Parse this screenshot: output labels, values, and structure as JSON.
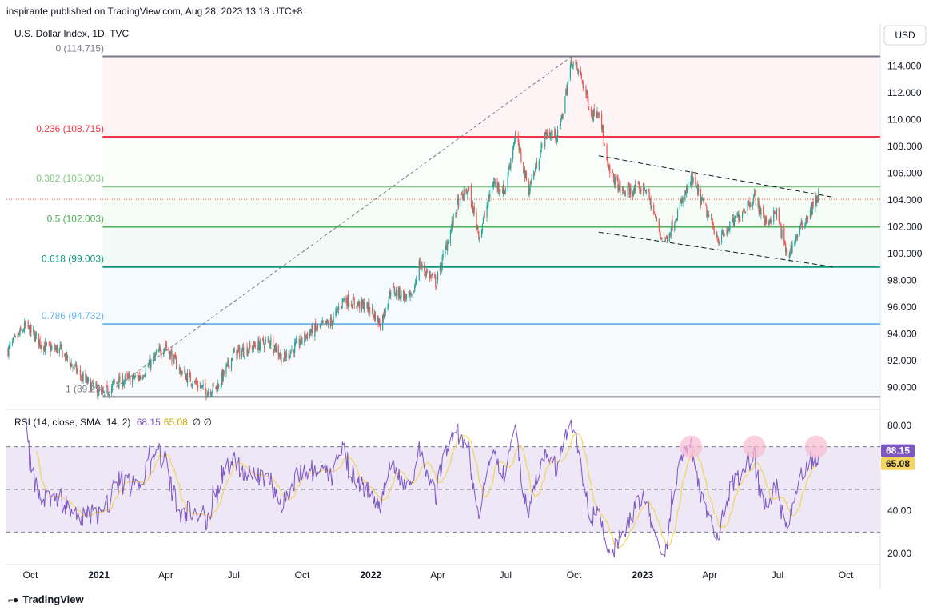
{
  "header": {
    "published": "inspirante published on TradingView.com, Aug 28, 2023 13:18 UTC+8"
  },
  "brand": {
    "name": "TradingView",
    "logo_icon": "tradingview-logo-icon"
  },
  "colors": {
    "up": "#26a69a",
    "down": "#ef5350",
    "rsi_line": "#7e57c2",
    "rsi_ma": "#f4d35e",
    "fib_0": "#787b86",
    "fib_0236": "#f23645",
    "fib_0382": "#81c784",
    "fib_05": "#4caf50",
    "fib_0618": "#089981",
    "fib_0786": "#64b5f6",
    "fib_1": "#787b86",
    "rsi_band": "#ede7f6",
    "highlight": "#f8bbd0"
  },
  "chart_data": [
    {
      "type": "candlestick",
      "title": "U.S. Dollar Index, 1D, TVC",
      "currency_button": "USD",
      "x_tick_labels": [
        "Oct",
        "2021",
        "Apr",
        "Jul",
        "Oct",
        "2022",
        "Apr",
        "Jul",
        "Oct",
        "2023",
        "Apr",
        "Jul",
        "Oct"
      ],
      "y_ticks": [
        90,
        92,
        94,
        96,
        98,
        100,
        102,
        104,
        106,
        108,
        110,
        112,
        114
      ],
      "ylim": [
        88.5,
        115.5
      ],
      "fib_levels": [
        {
          "ratio": "0",
          "price": 114.715,
          "label": "0 (114.715)",
          "color": "#787b86"
        },
        {
          "ratio": "0.236",
          "price": 108.715,
          "label": "0.236 (108.715)",
          "color": "#f23645"
        },
        {
          "ratio": "0.382",
          "price": 105.003,
          "label": "0.382 (105.003)",
          "color": "#81c784"
        },
        {
          "ratio": "0.5",
          "price": 102.003,
          "label": "0.5 (102.003)",
          "color": "#4caf50"
        },
        {
          "ratio": "0.618",
          "price": 99.003,
          "label": "0.618 (99.003)",
          "color": "#089981"
        },
        {
          "ratio": "0.786",
          "price": 94.732,
          "label": "0.786 (94.732)",
          "color": "#64b5f6"
        },
        {
          "ratio": "1",
          "price": 89.29,
          "label": "1 (89.29)",
          "color": "#787b86"
        }
      ],
      "last_price": 104.05,
      "trend_line": {
        "from": [
          "2021-01-06",
          89.29
        ],
        "to": [
          "2022-09-28",
          114.715
        ]
      },
      "channel_upper": {
        "from": [
          "2022-11-03",
          107.3
        ],
        "to": [
          "2023-09-15",
          104.2
        ]
      },
      "channel_lower": {
        "from": [
          "2022-11-03",
          101.6
        ],
        "to": [
          "2023-09-15",
          99.0
        ]
      },
      "price_anchors": [
        [
          "2020-09-01",
          92.8
        ],
        [
          "2020-09-25",
          94.6
        ],
        [
          "2020-10-20",
          93.0
        ],
        [
          "2020-11-10",
          92.8
        ],
        [
          "2020-12-10",
          90.7
        ],
        [
          "2021-01-06",
          89.4
        ],
        [
          "2021-01-25",
          90.4
        ],
        [
          "2021-02-25",
          90.8
        ],
        [
          "2021-03-31",
          93.2
        ],
        [
          "2021-04-20",
          91.2
        ],
        [
          "2021-05-25",
          89.7
        ],
        [
          "2021-06-10",
          90.1
        ],
        [
          "2021-07-01",
          92.5
        ],
        [
          "2021-08-20",
          93.5
        ],
        [
          "2021-09-05",
          92.1
        ],
        [
          "2021-10-10",
          94.1
        ],
        [
          "2021-11-10",
          94.9
        ],
        [
          "2021-11-25",
          96.6
        ],
        [
          "2021-12-31",
          95.9
        ],
        [
          "2022-01-14",
          94.7
        ],
        [
          "2022-01-28",
          97.3
        ],
        [
          "2022-02-25",
          96.6
        ],
        [
          "2022-03-07",
          99.2
        ],
        [
          "2022-03-30",
          97.8
        ],
        [
          "2022-04-28",
          103.8
        ],
        [
          "2022-05-12",
          104.8
        ],
        [
          "2022-05-27",
          101.3
        ],
        [
          "2022-06-14",
          105.3
        ],
        [
          "2022-06-30",
          104.7
        ],
        [
          "2022-07-14",
          108.9
        ],
        [
          "2022-08-01",
          104.8
        ],
        [
          "2022-08-25",
          109.0
        ],
        [
          "2022-09-10",
          108.8
        ],
        [
          "2022-09-28",
          114.5
        ],
        [
          "2022-10-10",
          113.2
        ],
        [
          "2022-10-25",
          110.4
        ],
        [
          "2022-11-04",
          110.8
        ],
        [
          "2022-11-15",
          106.3
        ],
        [
          "2022-12-05",
          104.6
        ],
        [
          "2023-01-05",
          104.9
        ],
        [
          "2023-01-26",
          101.3
        ],
        [
          "2023-02-01",
          101.0
        ],
        [
          "2023-03-08",
          105.6
        ],
        [
          "2023-04-03",
          102.3
        ],
        [
          "2023-04-14",
          101.0
        ],
        [
          "2023-05-31",
          104.3
        ],
        [
          "2023-06-15",
          102.3
        ],
        [
          "2023-06-30",
          103.0
        ],
        [
          "2023-07-14",
          99.8
        ],
        [
          "2023-08-01",
          101.9
        ],
        [
          "2023-08-25",
          104.3
        ]
      ]
    },
    {
      "type": "line",
      "title": "RSI",
      "legend": {
        "label": "RSI (14, close, SMA, 14, 2)",
        "rsi_value": "68.15",
        "ma_value": "65.08",
        "extra": "∅ ∅"
      },
      "y_ticks": [
        20,
        40,
        60,
        80
      ],
      "y_tick_labels": [
        "20.00",
        "40.00",
        "",
        "80.00"
      ],
      "ylim": [
        16,
        85
      ],
      "band": [
        30,
        70
      ],
      "midline": 50,
      "last_rsi": 68.15,
      "last_ma": 65.08,
      "highlight_markers": [
        {
          "date": "2023-03-07",
          "value": 70
        },
        {
          "date": "2023-05-31",
          "value": 70
        },
        {
          "date": "2023-08-22",
          "value": 70
        }
      ]
    }
  ]
}
